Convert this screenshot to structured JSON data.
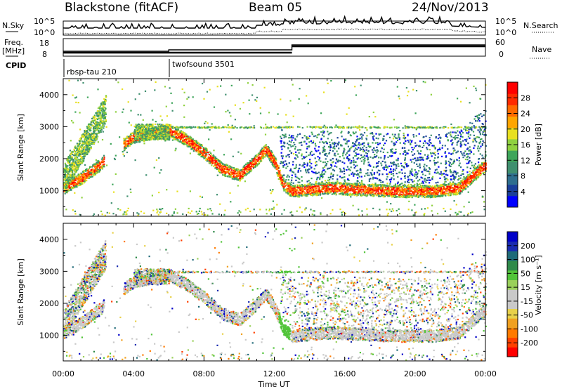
{
  "header": {
    "station": "Blackstone (fitACF)",
    "beam": "Beam 05",
    "date": "24/Nov/2013"
  },
  "summary": {
    "nsky_label": "N.Sky",
    "nsearch_label": "N.Search",
    "noise_ticks": [
      "10^5",
      "10^0"
    ],
    "freq_label_1": "Freq.",
    "freq_label_2": "[MHz]",
    "freq_ticks": [
      "18",
      "8"
    ],
    "nave_label": "Nave",
    "nave_ticks": [
      "60",
      "0"
    ],
    "cpid_label": "CPID",
    "cpid_entries": [
      {
        "name": "rbsp-tau 210",
        "start_hour": 0.0
      },
      {
        "name": "twofsound 3501",
        "start_hour": 6.0
      }
    ]
  },
  "colors": {
    "power": [
      "#0000ff",
      "#1a3f9a",
      "#2e6e8e",
      "#3f8f6f",
      "#3ea55a",
      "#8fd13f",
      "#e8e020",
      "#ffa500",
      "#ff6a00",
      "#ff2a00",
      "#ff0000"
    ],
    "velocity": [
      "#0000c8",
      "#1a2bb0",
      "#1f6a78",
      "#2f8a4a",
      "#52c43a",
      "#9ad05a",
      "#c9c9c9",
      "#c9c9c9",
      "#e8d14a",
      "#f0a020",
      "#ff7a00",
      "#ff4000",
      "#ff0000"
    ]
  },
  "chart_data": [
    {
      "type": "heatmap",
      "name": "power",
      "ylabel": "Slant Range [km]",
      "xlim_hours": [
        0,
        24
      ],
      "ylim_km": [
        200,
        4500
      ],
      "yticks": [
        "1000",
        "2000",
        "3000",
        "4000"
      ],
      "colorbar_label": "Power [dB]",
      "colorbar_range": [
        0,
        32
      ],
      "colorbar_ticks": [
        "4",
        "8",
        "12",
        "16",
        "20",
        "24",
        "28"
      ],
      "main_band_trace": [
        [
          0.0,
          1100
        ],
        [
          1.0,
          1400
        ],
        [
          2.0,
          1800
        ],
        [
          3.0,
          2300
        ],
        [
          4.0,
          2700
        ],
        [
          6.0,
          2900
        ],
        [
          7.0,
          2600
        ],
        [
          8.0,
          2200
        ],
        [
          9.0,
          1700
        ],
        [
          10.0,
          1500
        ],
        [
          11.0,
          2000
        ],
        [
          11.5,
          2300
        ],
        [
          12.0,
          1900
        ],
        [
          12.5,
          1200
        ],
        [
          13.0,
          1000
        ],
        [
          15.0,
          1100
        ],
        [
          17.0,
          1050
        ],
        [
          19.0,
          1000
        ],
        [
          21.0,
          1000
        ],
        [
          22.5,
          1100
        ],
        [
          23.5,
          1600
        ],
        [
          24.0,
          1800
        ]
      ]
    },
    {
      "type": "heatmap",
      "name": "velocity",
      "xlabel": "Time UT",
      "xticks": [
        "00:00",
        "04:00",
        "08:00",
        "12:00",
        "16:00",
        "20:00",
        "00:00"
      ],
      "ylabel": "Slant Range [km]",
      "yticks": [
        "1000",
        "2000",
        "3000",
        "4000"
      ],
      "colorbar_label": "Velocity [m s⁻¹]",
      "colorbar_ticks": [
        "200",
        "100",
        "50",
        "15",
        "-15",
        "-50",
        "-100",
        "-200"
      ]
    }
  ]
}
